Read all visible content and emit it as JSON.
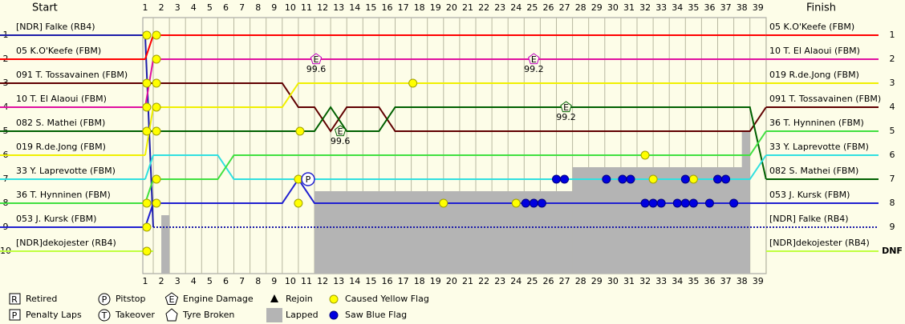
{
  "chart_data": {
    "type": "lap_chart",
    "start_title": "Start",
    "finish_title": "Finish",
    "laps": [
      1,
      2,
      3,
      4,
      5,
      6,
      7,
      8,
      9,
      10,
      11,
      12,
      13,
      14,
      15,
      16,
      17,
      18,
      19,
      20,
      21,
      22,
      23,
      24,
      25,
      26,
      27,
      28,
      29,
      30,
      31,
      32,
      33,
      34,
      35,
      36,
      37,
      38,
      39
    ],
    "positions_left": [
      1,
      2,
      3,
      4,
      5,
      6,
      7,
      8,
      9,
      10
    ],
    "positions_right": [
      1,
      2,
      3,
      4,
      5,
      6,
      7,
      8,
      9,
      "DNF"
    ],
    "drivers": [
      {
        "name": "[NDR] Falke (RB4)",
        "color": "#1c1ca8",
        "start": 1,
        "style": "dotted",
        "laps": [
          9,
          9,
          9,
          9,
          9,
          9,
          9,
          9,
          9,
          9,
          9,
          9,
          9,
          9,
          9,
          9,
          9,
          9,
          9,
          9,
          9,
          9,
          9,
          9,
          9,
          9,
          9,
          9,
          9,
          9,
          9,
          9,
          9,
          9,
          9,
          9,
          9,
          9,
          9
        ]
      },
      {
        "name": "05 K.O'Keefe (FBM)",
        "color": "#ff0000",
        "start": 2,
        "style": "solid",
        "laps": [
          1,
          1,
          1,
          1,
          1,
          1,
          1,
          1,
          1,
          1,
          1,
          1,
          1,
          1,
          1,
          1,
          1,
          1,
          1,
          1,
          1,
          1,
          1,
          1,
          1,
          1,
          1,
          1,
          1,
          1,
          1,
          1,
          1,
          1,
          1,
          1,
          1,
          1,
          1
        ]
      },
      {
        "name": "091 T. Tossavainen (FBM)",
        "color": "#600000",
        "start": 3,
        "style": "solid",
        "laps": [
          3,
          3,
          3,
          3,
          3,
          3,
          3,
          3,
          3,
          4,
          4,
          5,
          4,
          4,
          4,
          5,
          5,
          5,
          5,
          5,
          5,
          5,
          5,
          5,
          5,
          5,
          5,
          5,
          5,
          5,
          5,
          5,
          5,
          5,
          5,
          5,
          5,
          5,
          4
        ]
      },
      {
        "name": "10 T. El Alaoui (FBM)",
        "color": "#e010a0",
        "start": 4,
        "style": "solid",
        "laps": [
          2,
          2,
          2,
          2,
          2,
          2,
          2,
          2,
          2,
          2,
          2,
          2,
          2,
          2,
          2,
          2,
          2,
          2,
          2,
          2,
          2,
          2,
          2,
          2,
          2,
          2,
          2,
          2,
          2,
          2,
          2,
          2,
          2,
          2,
          2,
          2,
          2,
          2,
          2
        ]
      },
      {
        "name": "082 S. Mathei (FBM)",
        "color": "#006000",
        "start": 5,
        "style": "solid",
        "laps": [
          5,
          5,
          5,
          5,
          5,
          5,
          5,
          5,
          5,
          5,
          5,
          4,
          5,
          5,
          5,
          4,
          4,
          4,
          4,
          4,
          4,
          4,
          4,
          4,
          4,
          4,
          4,
          4,
          4,
          4,
          4,
          4,
          4,
          4,
          4,
          4,
          4,
          4,
          7
        ]
      },
      {
        "name": "019 R.de.Jong (FBM)",
        "color": "#f0f000",
        "start": 6,
        "style": "solid",
        "laps": [
          4,
          4,
          4,
          4,
          4,
          4,
          4,
          4,
          4,
          3,
          3,
          3,
          3,
          3,
          3,
          3,
          3,
          3,
          3,
          3,
          3,
          3,
          3,
          3,
          3,
          3,
          3,
          3,
          3,
          3,
          3,
          3,
          3,
          3,
          3,
          3,
          3,
          3,
          3
        ]
      },
      {
        "name": "33 Y. Laprevotte (FBM)",
        "color": "#30e0e0",
        "start": 7,
        "style": "solid",
        "laps": [
          6,
          6,
          6,
          6,
          6,
          7,
          7,
          7,
          7,
          7,
          7,
          7,
          7,
          7,
          7,
          7,
          7,
          7,
          7,
          7,
          7,
          7,
          7,
          7,
          7,
          7,
          7,
          7,
          7,
          7,
          7,
          7,
          7,
          7,
          7,
          7,
          7,
          7,
          6
        ]
      },
      {
        "name": "36 T. Hynninen (FBM)",
        "color": "#40e040",
        "start": 8,
        "style": "solid",
        "laps": [
          7,
          7,
          7,
          7,
          7,
          6,
          6,
          6,
          6,
          6,
          6,
          6,
          6,
          6,
          6,
          6,
          6,
          6,
          6,
          6,
          6,
          6,
          6,
          6,
          6,
          6,
          6,
          6,
          6,
          6,
          6,
          6,
          6,
          6,
          6,
          6,
          6,
          6,
          5
        ]
      },
      {
        "name": "053 J. Kursk (FBM)",
        "color": "#2020d0",
        "start": 9,
        "style": "solid",
        "laps": [
          8,
          8,
          8,
          8,
          8,
          8,
          8,
          8,
          8,
          7,
          8,
          8,
          8,
          8,
          8,
          8,
          8,
          8,
          8,
          8,
          8,
          8,
          8,
          8,
          8,
          8,
          8,
          8,
          8,
          8,
          8,
          8,
          8,
          8,
          8,
          8,
          8,
          8,
          8
        ]
      },
      {
        "name": "[NDR]dekojester (RB4)",
        "color": "#c0ff40",
        "start": 10,
        "style": "solid",
        "laps": [
          10,
          null,
          null,
          null,
          null,
          null,
          null,
          null,
          null,
          null,
          null,
          null,
          null,
          null,
          null,
          null,
          null,
          null,
          null,
          null,
          null,
          null,
          null,
          null,
          null,
          null,
          null,
          null,
          null,
          null,
          null,
          null,
          null,
          null,
          null,
          null,
          null,
          null,
          null
        ]
      }
    ],
    "finish": [
      "05 K.O'Keefe (FBM)",
      "10 T. El Alaoui (FBM)",
      "019 R.de.Jong (FBM)",
      "091 T. Tossavainen (FBM)",
      "36 T. Hynninen (FBM)",
      "33 Y. Laprevotte (FBM)",
      "082 S. Mathei (FBM)",
      "053 J. Kursk (FBM)",
      "[NDR] Falke (RB4)",
      "[NDR]dekojester (RB4)"
    ],
    "lapped": [
      {
        "from": 1.5,
        "to": 2,
        "top": 8.5
      },
      {
        "from": 11,
        "to": 27,
        "top": 7.5
      },
      {
        "from": 27,
        "to": 38,
        "top": 6.5
      },
      {
        "from": 37.5,
        "to": 38,
        "top": 5
      }
    ],
    "pitstops": [
      {
        "lap": 10.6,
        "position": 7
      }
    ],
    "engine_damage": [
      {
        "lap": 11.1,
        "position": 2,
        "label": "99.6",
        "color": "#c000c0"
      },
      {
        "lap": 24.6,
        "position": 2,
        "label": "99.2",
        "color": "#c000c0"
      },
      {
        "lap": 12.6,
        "position": 5,
        "label": "99.6",
        "color": "#006000"
      },
      {
        "lap": 26.6,
        "position": 4,
        "label": "99.2",
        "color": "#006000"
      }
    ],
    "yellow_flags": [
      {
        "lap": 0.6,
        "position": 1
      },
      {
        "lap": 0.6,
        "position": 3
      },
      {
        "lap": 0.6,
        "position": 4
      },
      {
        "lap": 0.6,
        "position": 5
      },
      {
        "lap": 0.6,
        "position": 8
      },
      {
        "lap": 0.6,
        "position": 9
      },
      {
        "lap": 0.6,
        "position": 10
      },
      {
        "lap": 1.2,
        "position": 1
      },
      {
        "lap": 1.2,
        "position": 2
      },
      {
        "lap": 1.2,
        "position": 3
      },
      {
        "lap": 1.2,
        "position": 4
      },
      {
        "lap": 1.2,
        "position": 5
      },
      {
        "lap": 1.2,
        "position": 7
      },
      {
        "lap": 1.2,
        "position": 8
      },
      {
        "lap": 10.1,
        "position": 5
      },
      {
        "lap": 10,
        "position": 7
      },
      {
        "lap": 10,
        "position": 8
      },
      {
        "lap": 17.1,
        "position": 3
      },
      {
        "lap": 19,
        "position": 8
      },
      {
        "lap": 23.5,
        "position": 8
      },
      {
        "lap": 31.5,
        "position": 6
      },
      {
        "lap": 32,
        "position": 7
      },
      {
        "lap": 34.5,
        "position": 7
      }
    ],
    "blue_flags": [
      {
        "lap": 24.1,
        "position": 8
      },
      {
        "lap": 24.6,
        "position": 8
      },
      {
        "lap": 25.1,
        "position": 8
      },
      {
        "lap": 26,
        "position": 7
      },
      {
        "lap": 26.5,
        "position": 7
      },
      {
        "lap": 29.1,
        "position": 7
      },
      {
        "lap": 30.1,
        "position": 7
      },
      {
        "lap": 30.6,
        "position": 7
      },
      {
        "lap": 31.5,
        "position": 8
      },
      {
        "lap": 32,
        "position": 8
      },
      {
        "lap": 32.5,
        "position": 8
      },
      {
        "lap": 33.5,
        "position": 8
      },
      {
        "lap": 34,
        "position": 8
      },
      {
        "lap": 34.5,
        "position": 8
      },
      {
        "lap": 34,
        "position": 7
      },
      {
        "lap": 35.5,
        "position": 8
      },
      {
        "lap": 36,
        "position": 7
      },
      {
        "lap": 36.5,
        "position": 7
      },
      {
        "lap": 37,
        "position": 8
      }
    ],
    "legend": [
      {
        "symbol": "R",
        "label": "Retired",
        "shape": "square"
      },
      {
        "symbol": "P",
        "label": "Penalty Laps",
        "shape": "square"
      },
      {
        "symbol": "P",
        "label": "Pitstop",
        "shape": "circle"
      },
      {
        "symbol": "T",
        "label": "Takeover",
        "shape": "circle"
      },
      {
        "symbol": "E",
        "label": "Engine Damage",
        "shape": "pentagon"
      },
      {
        "label": "Tyre Broken",
        "shape": "house"
      },
      {
        "label": "Rejoin",
        "shape": "triangle"
      },
      {
        "label": "Lapped",
        "shape": "rect"
      },
      {
        "label": "Caused Yellow Flag",
        "shape": "yellow-dot"
      },
      {
        "label": "Saw Blue Flag",
        "shape": "blue-dot"
      }
    ]
  }
}
